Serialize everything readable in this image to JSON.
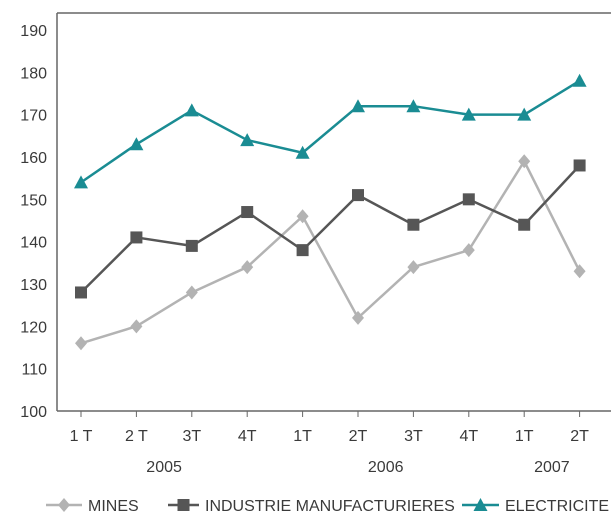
{
  "chart_data": {
    "type": "line",
    "categories": [
      "1 T",
      "2 T",
      "3T",
      "4T",
      "1T",
      "2T",
      "3T",
      "4T",
      "1T",
      "2T"
    ],
    "year_groups": [
      {
        "label": "2005",
        "from": 0,
        "to": 3
      },
      {
        "label": "2006",
        "from": 4,
        "to": 7
      },
      {
        "label": "2007",
        "from": 8,
        "to": 9
      }
    ],
    "ylim": [
      100,
      190
    ],
    "yticks": [
      100,
      110,
      120,
      130,
      140,
      150,
      160,
      170,
      180,
      190
    ],
    "grid": false,
    "legend_position": "bottom",
    "series": [
      {
        "name": "MINES",
        "marker": "diamond",
        "color": "#b3b3b3",
        "values": [
          116,
          120,
          128,
          134,
          146,
          122,
          134,
          138,
          159,
          133
        ]
      },
      {
        "name": "INDUSTRIE MANUFACTURIERES",
        "marker": "square",
        "color": "#565656",
        "values": [
          128,
          141,
          139,
          147,
          138,
          151,
          144,
          150,
          144,
          158
        ]
      },
      {
        "name": "ELECTRICITE",
        "marker": "triangle",
        "color": "#1a8c93",
        "values": [
          154,
          163,
          171,
          164,
          161,
          172,
          172,
          170,
          170,
          178
        ]
      }
    ]
  }
}
